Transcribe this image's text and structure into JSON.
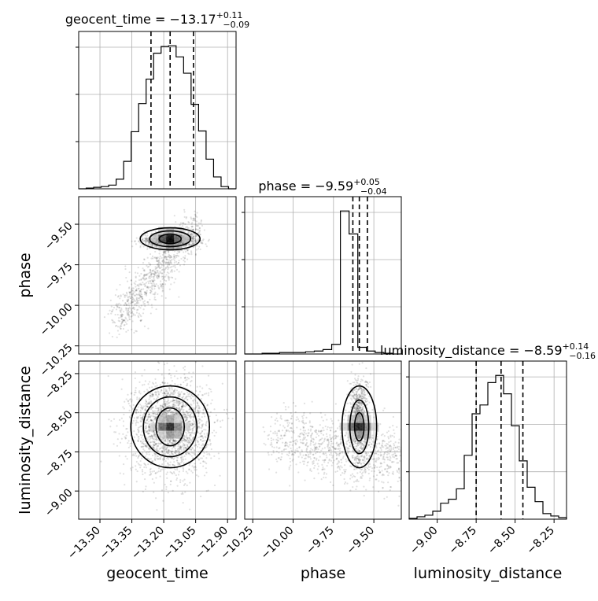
{
  "chart_data": {
    "type": "corner_plot",
    "parameters": [
      "geocent_time",
      "phase",
      "luminosity_distance"
    ],
    "titles": {
      "geocent_time": {
        "base": "geocent_time = −13.17",
        "plus": "+0.11",
        "minus": "−0.09"
      },
      "phase": {
        "base": "phase = −9.59",
        "plus": "+0.05",
        "minus": "−0.04"
      },
      "luminosity_distance": {
        "base": "luminosity_distance = −8.59",
        "plus": "+0.14",
        "minus": "−0.16"
      }
    },
    "ranges": {
      "geocent_time": [
        -13.6,
        -12.86
      ],
      "phase": [
        -10.3,
        -9.33
      ],
      "luminosity_distance": [
        -9.18,
        -8.17
      ]
    },
    "ticks": {
      "geocent_time": [
        -13.5,
        -13.35,
        -13.2,
        -13.05,
        -12.9
      ],
      "phase": [
        -10.25,
        -10.0,
        -9.75,
        -9.5
      ],
      "luminosity_distance": [
        -9.0,
        -8.75,
        -8.5,
        -8.25
      ]
    },
    "tick_labels": {
      "geocent_time": [
        "−13.50",
        "−13.35",
        "−13.20",
        "−13.05",
        "−12.90"
      ],
      "phase": [
        "−10.25",
        "−10.00",
        "−9.75",
        "−9.50"
      ],
      "luminosity_distance": [
        "−9.00",
        "−8.75",
        "−8.50",
        "−8.25"
      ]
    },
    "quantiles": {
      "geocent_time": [
        -13.26,
        -13.17,
        -13.06
      ],
      "phase": [
        -9.63,
        -9.59,
        -9.54
      ],
      "luminosity_distance": [
        -8.75,
        -8.59,
        -8.45
      ]
    },
    "histograms": {
      "geocent_time": [
        0,
        1,
        2,
        3,
        5,
        13,
        37,
        77,
        115,
        148,
        183,
        192,
        193,
        178,
        156,
        114,
        78,
        40,
        16,
        3,
        0
      ],
      "phase": [
        0,
        0,
        1,
        1,
        2,
        2,
        2,
        3,
        4,
        6,
        13,
        193,
        162,
        9,
        4,
        2,
        1,
        0
      ],
      "luminosity_distance": [
        1,
        3,
        5,
        10,
        20,
        25,
        38,
        80,
        132,
        143,
        171,
        180,
        157,
        117,
        73,
        40,
        22,
        7,
        4,
        2
      ]
    },
    "grid": true
  }
}
